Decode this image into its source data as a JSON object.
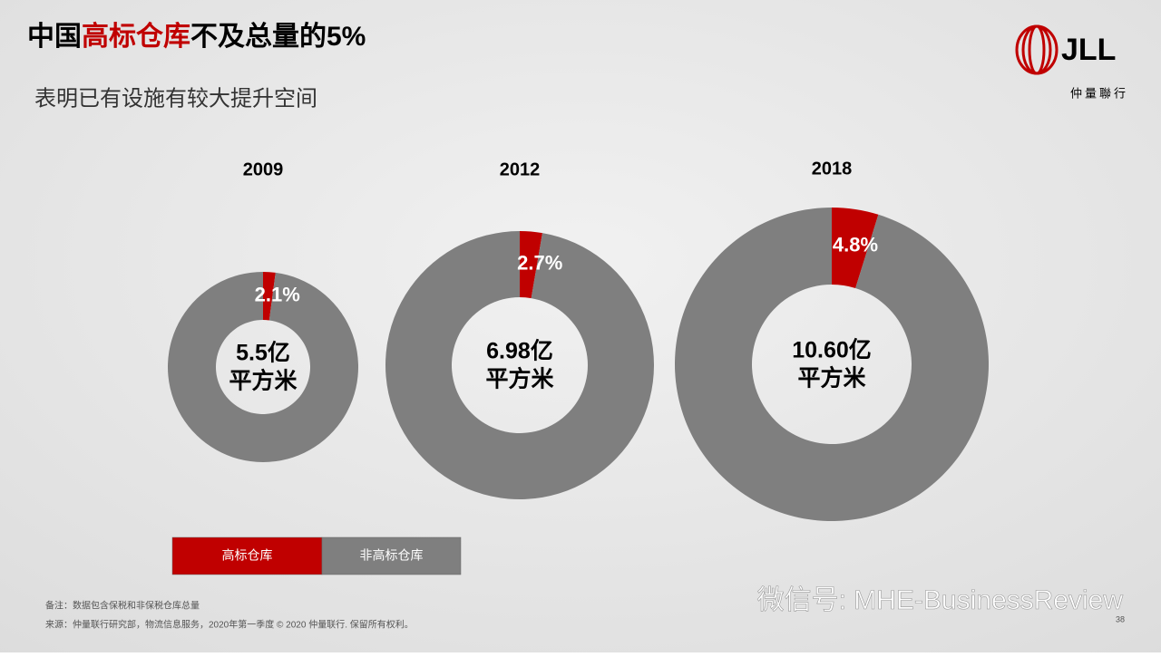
{
  "title_parts": [
    "中国",
    "高标仓库",
    "不及总量的5%"
  ],
  "subtitle": "表明已有设施有较大提升空间",
  "logo": {
    "brand": "JLL",
    "tagline": "仲量聯行"
  },
  "notes": [
    "备注：数据包含保税和非保税仓库总量",
    "来源：仲量联行研究部，物流信息服务，2020年第一季度 © 2020 仲量联行. 保留所有权利。"
  ],
  "watermark": "微信号: MHE-BusinessReview",
  "page_number": "38",
  "chart_data": [
    {
      "type": "pie",
      "donut": true,
      "title": "2009",
      "categories": [
        "高标仓库",
        "非高标仓库"
      ],
      "values": [
        2.1,
        97.9
      ],
      "value_labels": [
        "2.1%",
        null
      ],
      "colors": [
        "#c00000",
        "#7f7f7f"
      ],
      "center_label": [
        "5.5亿",
        "平方米"
      ]
    },
    {
      "type": "pie",
      "donut": true,
      "title": "2012",
      "categories": [
        "高标仓库",
        "非高标仓库"
      ],
      "values": [
        2.7,
        97.3
      ],
      "value_labels": [
        "2.7%",
        null
      ],
      "colors": [
        "#c00000",
        "#7f7f7f"
      ],
      "center_label": [
        "6.98亿",
        "平方米"
      ]
    },
    {
      "type": "pie",
      "donut": true,
      "title": "2018",
      "categories": [
        "高标仓库",
        "非高标仓库"
      ],
      "values": [
        4.8,
        95.2
      ],
      "value_labels": [
        "4.8%",
        null
      ],
      "colors": [
        "#c00000",
        "#7f7f7f"
      ],
      "center_label": [
        "10.60亿",
        "平方米"
      ]
    }
  ]
}
